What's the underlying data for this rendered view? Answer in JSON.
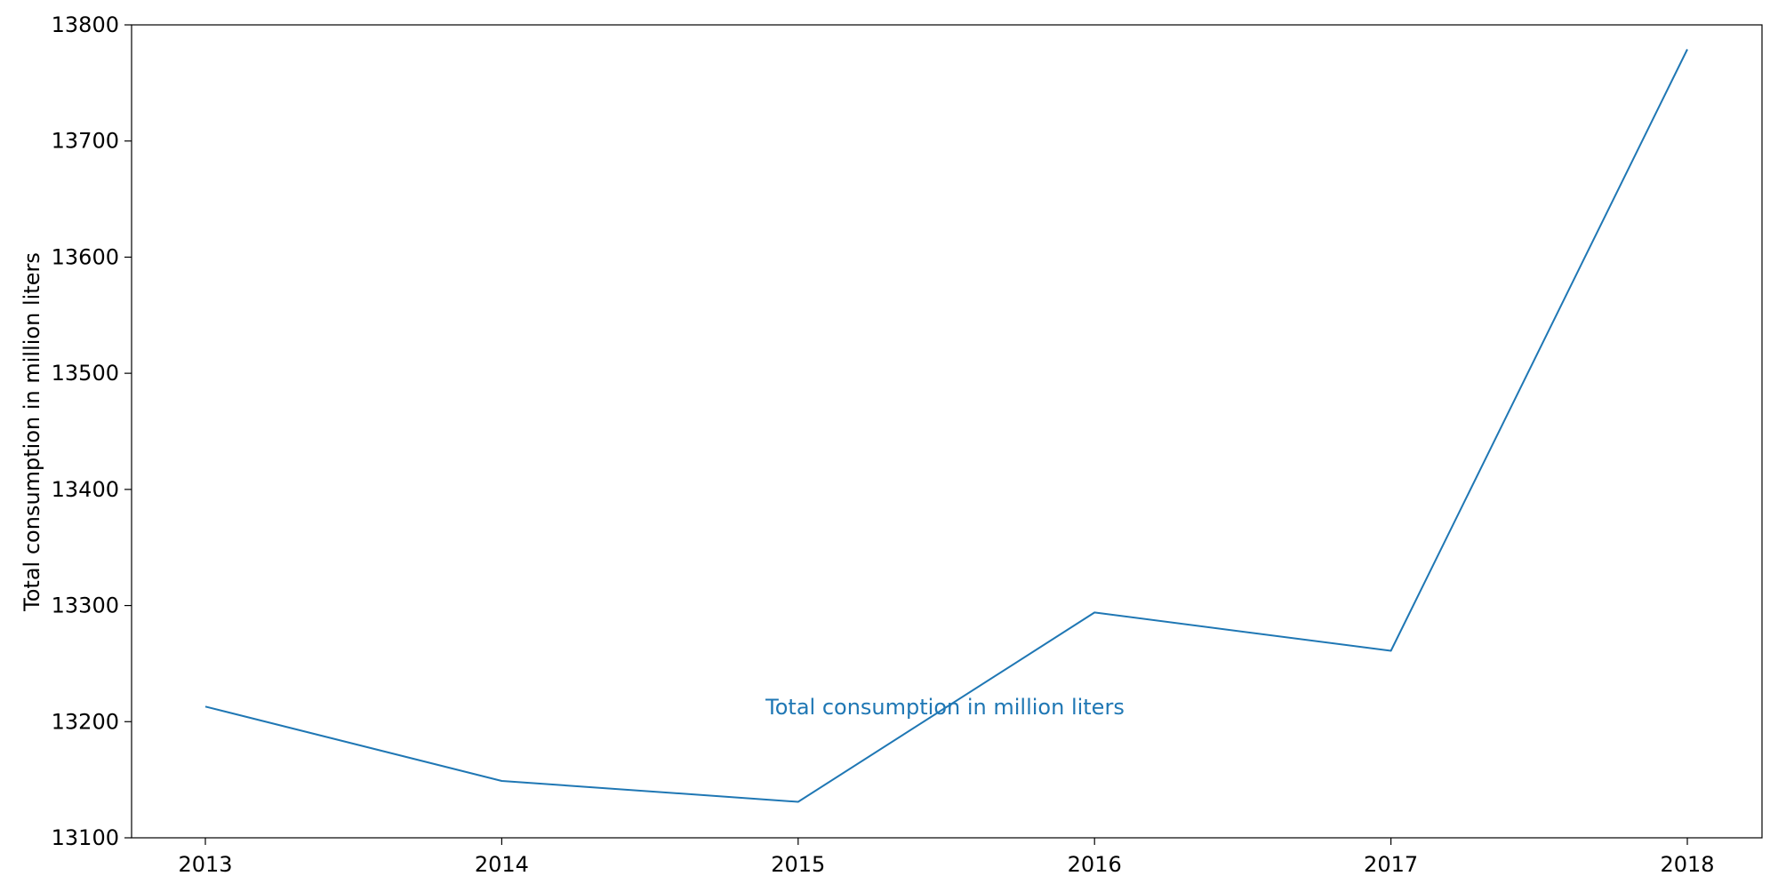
{
  "chart_data": {
    "type": "line",
    "title": "",
    "xlabel": "",
    "ylabel": "Total consumption in million liters",
    "x": [
      "2013",
      "2014",
      "2015",
      "2016",
      "2017",
      "2018"
    ],
    "series": [
      {
        "name": "Total consumption in million liters",
        "values": [
          13213,
          13149,
          13131,
          13294,
          13261,
          13779
        ],
        "color": "#1f77b4"
      }
    ],
    "ylim": [
      13100,
      13800
    ],
    "yticks": [
      13100,
      13200,
      13300,
      13400,
      13500,
      13600,
      13700,
      13800
    ],
    "grid": false,
    "annotation": {
      "text": "Total consumption in million liters",
      "color": "#1f77b4"
    }
  }
}
